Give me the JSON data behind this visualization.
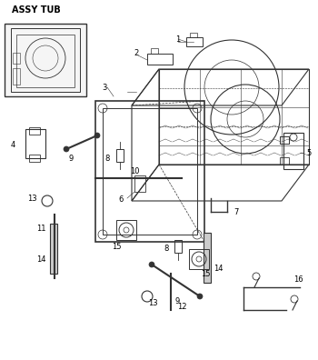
{
  "title": "ASSY TUB",
  "bg_color": "#ffffff",
  "line_color": "#333333",
  "label_color": "#000000",
  "fig_width": 3.5,
  "fig_height": 3.96,
  "dpi": 100
}
